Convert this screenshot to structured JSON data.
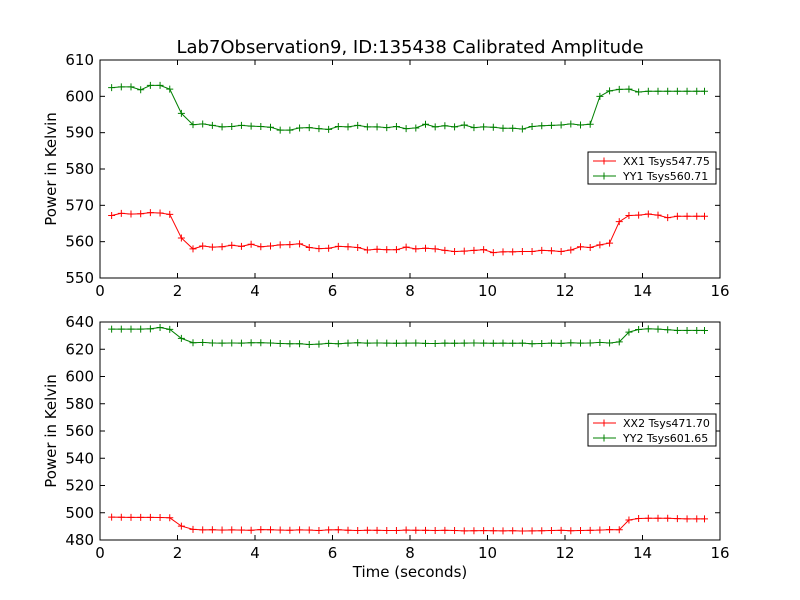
{
  "figure": {
    "title": "Lab7Observation9, ID:135438 Calibrated Amplitude"
  },
  "chart_data": [
    {
      "type": "line",
      "title": "Lab7Observation9, ID:135438 Calibrated Amplitude",
      "xlabel": "",
      "ylabel": "Power in Kelvin",
      "xlim": [
        0,
        16
      ],
      "ylim": [
        550,
        610
      ],
      "xticks": [
        "0",
        "2",
        "4",
        "6",
        "8",
        "10",
        "12",
        "14",
        "16"
      ],
      "yticks": [
        "550",
        "560",
        "570",
        "580",
        "590",
        "600",
        "610"
      ],
      "legend_position": "center-right",
      "grid": false,
      "x": [
        0.3,
        0.55,
        0.8,
        1.05,
        1.3,
        1.55,
        1.8,
        2.1,
        2.4,
        2.65,
        2.9,
        3.15,
        3.4,
        3.65,
        3.9,
        4.15,
        4.4,
        4.65,
        4.9,
        5.15,
        5.4,
        5.65,
        5.9,
        6.15,
        6.4,
        6.65,
        6.9,
        7.15,
        7.4,
        7.65,
        7.9,
        8.15,
        8.4,
        8.65,
        8.9,
        9.15,
        9.4,
        9.65,
        9.9,
        10.15,
        10.4,
        10.65,
        10.9,
        11.15,
        11.4,
        11.65,
        11.9,
        12.15,
        12.4,
        12.65,
        12.9,
        13.15,
        13.4,
        13.65,
        13.9,
        14.15,
        14.4,
        14.65,
        14.9,
        15.15,
        15.4,
        15.6
      ],
      "series": [
        {
          "name": "XX1 Tsys547.75",
          "color": "#ff0000",
          "values": [
            567.2,
            567.8,
            567.6,
            567.7,
            568.0,
            567.9,
            567.5,
            561.0,
            558.0,
            558.8,
            558.5,
            558.6,
            559.0,
            558.7,
            559.3,
            558.6,
            558.8,
            559.1,
            559.2,
            559.4,
            558.4,
            558.1,
            558.2,
            558.7,
            558.6,
            558.4,
            557.7,
            557.9,
            557.8,
            557.8,
            558.5,
            558.0,
            558.2,
            558.0,
            557.6,
            557.3,
            557.4,
            557.6,
            557.8,
            557.0,
            557.2,
            557.2,
            557.3,
            557.3,
            557.6,
            557.5,
            557.3,
            557.7,
            558.6,
            558.4,
            559.1,
            559.6,
            565.5,
            567.2,
            567.3,
            567.6,
            567.3,
            566.6,
            567.0,
            567.0,
            567.0,
            567.0
          ]
        },
        {
          "name": "YY1 Tsys560.71",
          "color": "#008000",
          "values": [
            602.4,
            602.6,
            602.6,
            601.8,
            603.0,
            603.0,
            602.0,
            595.3,
            592.2,
            592.4,
            592.0,
            591.6,
            591.7,
            592.0,
            591.8,
            591.7,
            591.5,
            590.7,
            590.7,
            591.3,
            591.4,
            591.1,
            590.9,
            591.7,
            591.6,
            592.0,
            591.6,
            591.6,
            591.4,
            591.7,
            591.1,
            591.3,
            592.3,
            591.6,
            591.9,
            591.6,
            592.1,
            591.4,
            591.6,
            591.5,
            591.2,
            591.2,
            591.0,
            591.7,
            591.9,
            592.0,
            592.1,
            592.4,
            592.1,
            592.3,
            600.0,
            601.5,
            601.9,
            602.0,
            601.2,
            601.4,
            601.4,
            601.4,
            601.4,
            601.4,
            601.4,
            601.4
          ]
        }
      ]
    },
    {
      "type": "line",
      "title": "",
      "xlabel": "Time (seconds)",
      "ylabel": "Power in Kelvin",
      "xlim": [
        0,
        16
      ],
      "ylim": [
        480,
        640
      ],
      "xticks": [
        "0",
        "2",
        "4",
        "6",
        "8",
        "10",
        "12",
        "14",
        "16"
      ],
      "yticks": [
        "480",
        "500",
        "520",
        "540",
        "560",
        "580",
        "600",
        "620",
        "640"
      ],
      "legend_position": "center-right",
      "grid": false,
      "x": [
        0.3,
        0.55,
        0.8,
        1.05,
        1.3,
        1.55,
        1.8,
        2.1,
        2.4,
        2.65,
        2.9,
        3.15,
        3.4,
        3.65,
        3.9,
        4.15,
        4.4,
        4.65,
        4.9,
        5.15,
        5.4,
        5.65,
        5.9,
        6.15,
        6.4,
        6.65,
        6.9,
        7.15,
        7.4,
        7.65,
        7.9,
        8.15,
        8.4,
        8.65,
        8.9,
        9.15,
        9.4,
        9.65,
        9.9,
        10.15,
        10.4,
        10.65,
        10.9,
        11.15,
        11.4,
        11.65,
        11.9,
        12.15,
        12.4,
        12.65,
        12.9,
        13.15,
        13.4,
        13.65,
        13.9,
        14.15,
        14.4,
        14.65,
        14.9,
        15.15,
        15.4,
        15.6
      ],
      "series": [
        {
          "name": "XX2 Tsys471.70",
          "color": "#ff0000",
          "values": [
            496.8,
            496.7,
            496.6,
            496.6,
            496.6,
            496.5,
            496.3,
            490.2,
            487.8,
            487.4,
            487.5,
            487.3,
            487.4,
            487.3,
            487.2,
            487.6,
            487.5,
            487.3,
            487.2,
            487.4,
            487.3,
            487.0,
            487.4,
            487.5,
            487.2,
            487.0,
            487.2,
            487.1,
            487.0,
            487.0,
            487.3,
            487.2,
            487.1,
            487.0,
            487.1,
            487.0,
            486.7,
            486.8,
            486.9,
            486.8,
            486.7,
            486.8,
            486.6,
            486.7,
            486.8,
            487.0,
            487.1,
            486.8,
            487.0,
            487.1,
            487.3,
            487.6,
            487.5,
            494.7,
            495.8,
            496.0,
            496.0,
            496.0,
            495.7,
            495.5,
            495.5,
            495.5
          ]
        },
        {
          "name": "YY2 Tsys601.65",
          "color": "#008000",
          "values": [
            634.8,
            634.8,
            634.8,
            634.8,
            635.0,
            636.0,
            634.6,
            628.0,
            624.8,
            625.0,
            624.6,
            624.5,
            624.6,
            624.5,
            624.8,
            624.8,
            624.6,
            624.2,
            624.0,
            624.0,
            623.5,
            623.8,
            624.3,
            624.0,
            624.5,
            624.8,
            624.5,
            624.6,
            624.5,
            624.4,
            624.5,
            624.6,
            624.3,
            624.2,
            624.5,
            624.4,
            624.5,
            624.6,
            624.5,
            624.4,
            624.5,
            624.4,
            624.5,
            624.0,
            624.2,
            624.5,
            624.3,
            624.7,
            624.5,
            624.6,
            625.0,
            624.6,
            625.4,
            632.6,
            634.5,
            635.0,
            634.8,
            634.3,
            633.8,
            633.8,
            633.8,
            633.8
          ]
        }
      ]
    }
  ]
}
